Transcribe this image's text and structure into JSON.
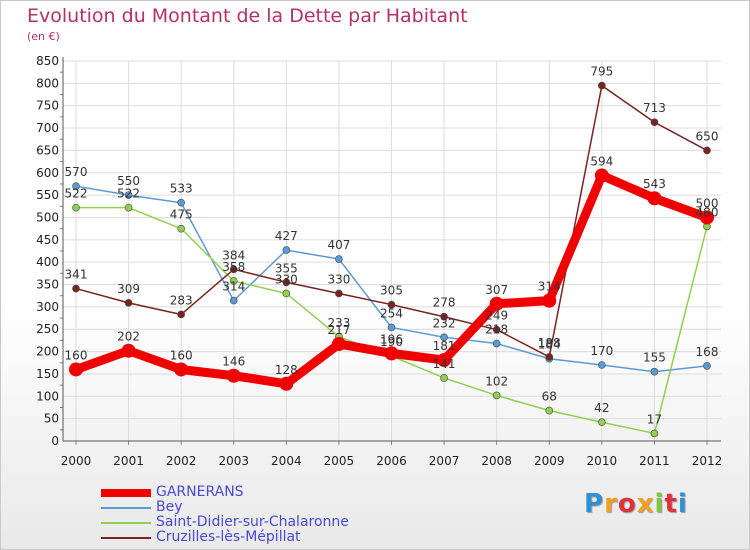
{
  "title": "Evolution du Montant de la Dette par Habitant",
  "subtitle": "(en €)",
  "logo": {
    "text": "Proxiti",
    "colors": [
      "#2e8fd8",
      "#f0a020",
      "#e0303a",
      "#f0a020",
      "#7bc83a",
      "#e0303a",
      "#2e8fd8"
    ]
  },
  "chart_data": {
    "type": "line",
    "x": [
      "2000",
      "2001",
      "2002",
      "2003",
      "2004",
      "2005",
      "2006",
      "2007",
      "2008",
      "2009",
      "2010",
      "2011",
      "2012"
    ],
    "ylim": [
      0,
      850
    ],
    "yticks": [
      "0",
      "50",
      "100",
      "150",
      "200",
      "250",
      "300",
      "350",
      "400",
      "450",
      "500",
      "550",
      "600",
      "650",
      "700",
      "750",
      "800",
      "850"
    ],
    "grid": true,
    "legend_position": "bottom-left",
    "series": [
      {
        "name": "GARNERANS",
        "color": "#f00000",
        "values": [
          160,
          202,
          160,
          146,
          128,
          217,
          196,
          181,
          307,
          314,
          594,
          543,
          500
        ],
        "labels": [
          "160",
          "202",
          "160",
          "146",
          "128",
          "217",
          "196",
          "181",
          "307",
          "314",
          "594",
          "543",
          "500"
        ]
      },
      {
        "name": "Bey",
        "color": "#5b9bd5",
        "values": [
          570,
          550,
          533,
          314,
          427,
          407,
          254,
          232,
          218,
          184,
          170,
          155,
          168
        ],
        "labels": [
          "570",
          "550",
          "533",
          "314",
          "427",
          "407",
          "254",
          "232",
          "218",
          "184",
          "170",
          "155",
          "168"
        ]
      },
      {
        "name": "Saint-Didier-sur-Chalaronne",
        "color": "#8fd14f",
        "values": [
          522,
          522,
          475,
          358,
          330,
          233,
          190,
          141,
          102,
          68,
          42,
          17,
          480
        ],
        "labels": [
          "522",
          "522",
          "475",
          "358",
          "330",
          "233",
          "190",
          "141",
          "102",
          "68",
          "42",
          "17",
          "480"
        ]
      },
      {
        "name": "Cruzilles-lès-Mépillat",
        "color": "#7a2420",
        "values": [
          341,
          309,
          283,
          384,
          355,
          330,
          305,
          278,
          249,
          188,
          795,
          713,
          650
        ],
        "labels": [
          "341",
          "309",
          "283",
          "384",
          "355",
          "330",
          "305",
          "278",
          "249",
          "188",
          "795",
          "713",
          "650"
        ]
      }
    ]
  }
}
